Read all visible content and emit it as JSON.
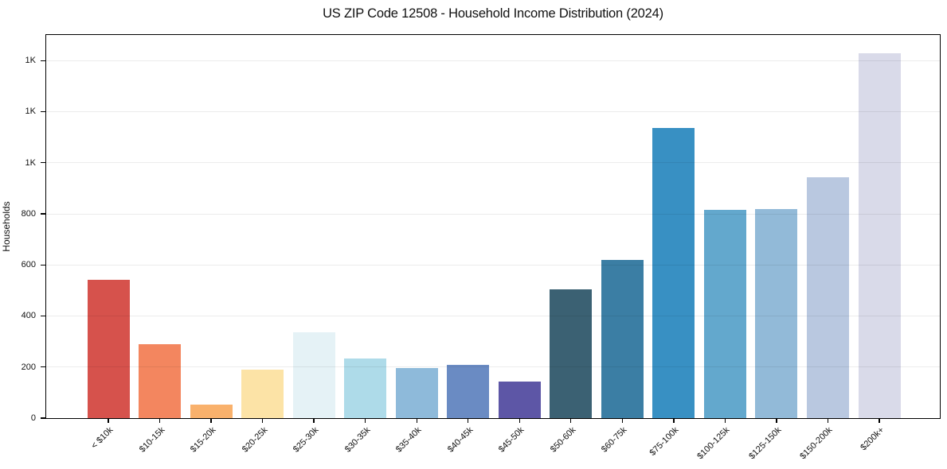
{
  "title": "US ZIP Code 12508 - Household Income Distribution (2024)",
  "chart_data": {
    "type": "bar",
    "title": "US ZIP Code 12508 - Household Income Distribution (2024)",
    "xlabel": "",
    "ylabel": "Households",
    "categories": [
      "< $10k",
      "$10-15k",
      "$15-20k",
      "$20-25k",
      "$25-30k",
      "$30-35k",
      "$35-40k",
      "$40-45k",
      "$45-50k",
      "$50-60k",
      "$60-75k",
      "$75-100k",
      "$100-125k",
      "$125-150k",
      "$150-200k",
      "$200k+"
    ],
    "values": [
      540,
      290,
      52,
      190,
      335,
      232,
      197,
      209,
      143,
      505,
      618,
      1136,
      815,
      820,
      943,
      1427
    ],
    "bar_colors": [
      "#d6524c",
      "#f3865f",
      "#f9b16c",
      "#fce3a6",
      "#e5f2f6",
      "#aedbe9",
      "#8ebada",
      "#6a8bc3",
      "#5d56a6",
      "#3b6173",
      "#3b7ea4",
      "#3890c3",
      "#63a8cd",
      "#92bad8",
      "#b9c8e0",
      "#d9dae9"
    ],
    "ylim": [
      0,
      1500
    ],
    "ytick_values": [
      0,
      200,
      400,
      600,
      800,
      1000,
      1200,
      1400
    ],
    "ytick_labels": [
      "0",
      "200",
      "400",
      "600",
      "800",
      "1K",
      "1K",
      "1K"
    ],
    "grid": "horizontal",
    "legend": "none",
    "background_color": "#ffffff",
    "grid_color": "#ededed",
    "spine_color": "#000000",
    "text_color": "#111111"
  }
}
